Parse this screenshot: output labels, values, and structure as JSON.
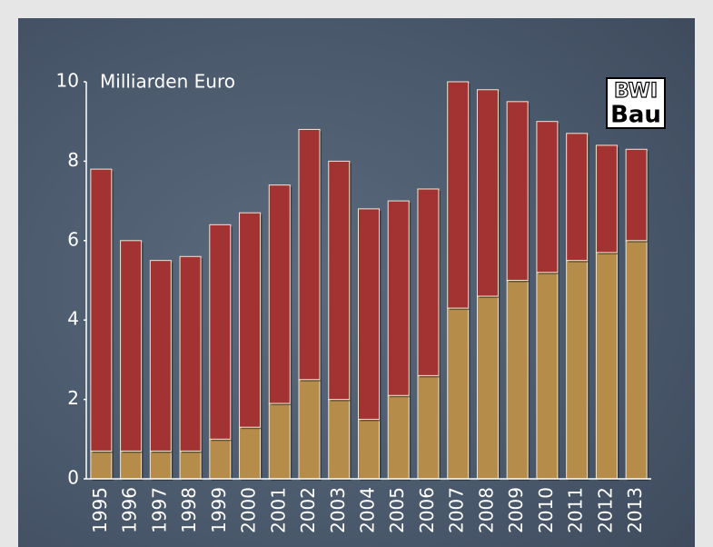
{
  "chart_data": {
    "type": "stacked_bar",
    "axis_label": "Milliarden Euro",
    "categories": [
      "1995",
      "1996",
      "1997",
      "1998",
      "1999",
      "2000",
      "2001",
      "2002",
      "2003",
      "2004",
      "2005",
      "2006",
      "2007",
      "2008",
      "2009",
      "2010",
      "2011",
      "2012",
      "2013"
    ],
    "series": [
      {
        "color": "#b58c4a",
        "values": [
          0.7,
          0.7,
          0.7,
          0.7,
          1.0,
          1.3,
          1.9,
          2.5,
          2.0,
          1.5,
          2.1,
          2.6,
          4.3,
          4.6,
          5.0,
          5.2,
          5.5,
          5.7,
          6.0
        ]
      },
      {
        "color": "#a33333",
        "values": [
          7.1,
          5.3,
          4.8,
          4.9,
          5.4,
          5.4,
          5.5,
          6.3,
          6.0,
          5.3,
          4.9,
          4.7,
          5.7,
          5.2,
          4.5,
          3.8,
          3.2,
          2.7,
          2.3
        ]
      }
    ],
    "ylim": [
      0,
      10
    ],
    "yticks": [
      0,
      2,
      4,
      6,
      8,
      10
    ]
  },
  "logo": {
    "line1": "BWI",
    "line2": "Bau"
  }
}
